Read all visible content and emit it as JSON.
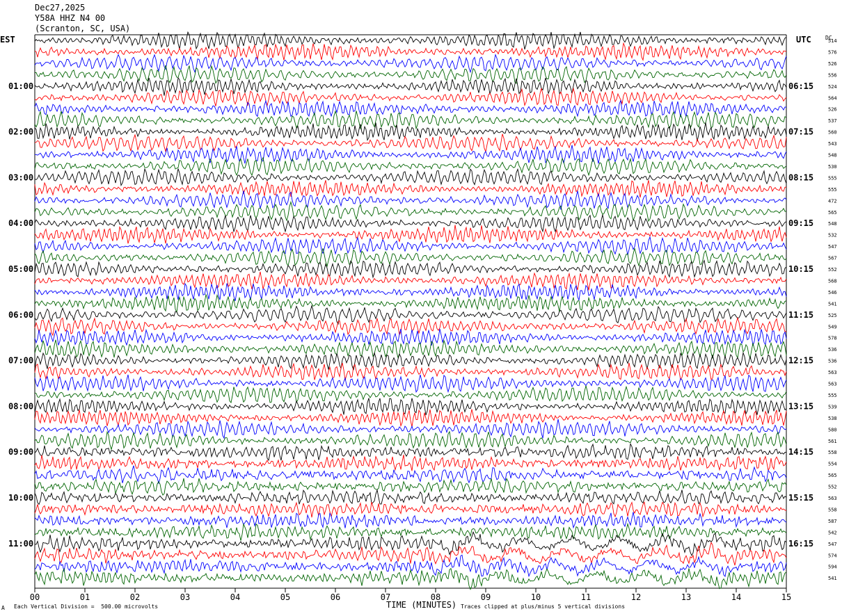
{
  "header": {
    "date": "Dec27,2025",
    "station": "Y58A HHZ N4 00",
    "location": "(Scranton, SC, USA)"
  },
  "left_tz": "EST",
  "right_tz": "UTC",
  "dc_label": "DC",
  "footer": {
    "scale_note": "Each Vertical Division =  500.00 microvolts",
    "clip_note": "Traces clipped at plus/minus 5 vertical divisions",
    "corner_mark": "A"
  },
  "colors": {
    "trace_cycle": [
      "#000000",
      "#ff0000",
      "#0000ff",
      "#006400"
    ]
  },
  "chart_data": {
    "type": "line",
    "xlabel": "TIME (MINUTES)",
    "x_ticks": [
      "00",
      "01",
      "02",
      "03",
      "04",
      "05",
      "06",
      "07",
      "08",
      "09",
      "10",
      "11",
      "12",
      "13",
      "14",
      "15"
    ],
    "xlim": [
      0,
      15
    ],
    "left_hour_labels": [
      "01:00",
      "02:00",
      "03:00",
      "04:00",
      "05:00",
      "06:00",
      "07:00",
      "08:00",
      "09:00",
      "10:00",
      "11:00"
    ],
    "right_hour_labels": [
      "06:15",
      "07:15",
      "08:15",
      "09:15",
      "10:15",
      "11:15",
      "12:15",
      "13:15",
      "14:15",
      "15:15",
      "16:15"
    ],
    "trace_count": 48,
    "dc_offsets": [
      "514",
      "576",
      "526",
      "556",
      "524",
      "564",
      "526",
      "537",
      "560",
      "543",
      "548",
      "530",
      "555",
      "555",
      "472",
      "565",
      "548",
      "532",
      "547",
      "567",
      "552",
      "568",
      "546",
      "541",
      "525",
      "549",
      "578",
      "536",
      "536",
      "563",
      "563",
      "555",
      "539",
      "538",
      "580",
      "561",
      "558",
      "554",
      "565",
      "552",
      "563",
      "558",
      "587",
      "542",
      "547",
      "574",
      "594",
      "541"
    ]
  }
}
